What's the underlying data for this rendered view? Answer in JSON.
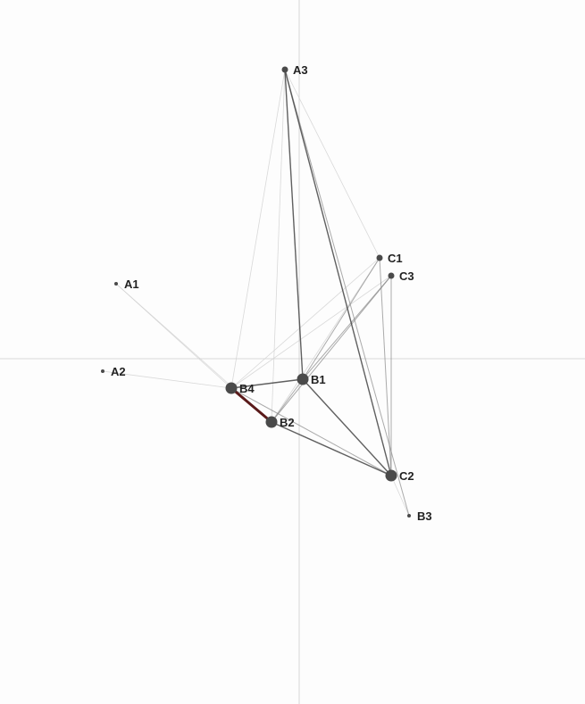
{
  "colors": {
    "background": "#fdfdfd",
    "axis": "#cccccc",
    "node": "#4a4a4a",
    "edge_strong": "#444444",
    "edge_medium": "#888888",
    "edge_weak": "#cfcfcf",
    "edge_highlight": "#5a1a1a"
  },
  "nodes": [
    {
      "id": "A1",
      "label": "A1",
      "size": "tiny"
    },
    {
      "id": "A2",
      "label": "A2",
      "size": "tiny"
    },
    {
      "id": "A3",
      "label": "A3",
      "size": "small"
    },
    {
      "id": "B1",
      "label": "B1",
      "size": "large"
    },
    {
      "id": "B2",
      "label": "B2",
      "size": "large"
    },
    {
      "id": "B3",
      "label": "B3",
      "size": "tiny"
    },
    {
      "id": "B4",
      "label": "B4",
      "size": "large"
    },
    {
      "id": "C1",
      "label": "C1",
      "size": "small"
    },
    {
      "id": "C2",
      "label": "C2",
      "size": "large"
    },
    {
      "id": "C3",
      "label": "C3",
      "size": "small"
    }
  ],
  "edges": [
    {
      "from": "A3",
      "to": "B1",
      "strength": "strong"
    },
    {
      "from": "A3",
      "to": "C2",
      "strength": "strong"
    },
    {
      "from": "A3",
      "to": "B4",
      "strength": "weak"
    },
    {
      "from": "A3",
      "to": "B2",
      "strength": "weak"
    },
    {
      "from": "A3",
      "to": "C1",
      "strength": "weak"
    },
    {
      "from": "A3",
      "to": "B3",
      "strength": "medium"
    },
    {
      "from": "B1",
      "to": "B4",
      "strength": "strong"
    },
    {
      "from": "B1",
      "to": "C2",
      "strength": "strong"
    },
    {
      "from": "B1",
      "to": "C3",
      "strength": "medium"
    },
    {
      "from": "B1",
      "to": "C1",
      "strength": "medium"
    },
    {
      "from": "B1",
      "to": "B2",
      "strength": "medium"
    },
    {
      "from": "B4",
      "to": "B2",
      "strength": "highlight"
    },
    {
      "from": "B4",
      "to": "C2",
      "strength": "medium"
    },
    {
      "from": "B4",
      "to": "C1",
      "strength": "weak"
    },
    {
      "from": "B4",
      "to": "C3",
      "strength": "weak"
    },
    {
      "from": "B2",
      "to": "C2",
      "strength": "strong"
    },
    {
      "from": "B2",
      "to": "C3",
      "strength": "medium"
    },
    {
      "from": "B2",
      "to": "C1",
      "strength": "weak"
    },
    {
      "from": "C3",
      "to": "C2",
      "strength": "medium"
    },
    {
      "from": "C1",
      "to": "C2",
      "strength": "medium"
    },
    {
      "from": "C2",
      "to": "B3",
      "strength": "weak"
    },
    {
      "from": "A1",
      "to": "B4",
      "strength": "weak"
    },
    {
      "from": "A1",
      "to": "B2",
      "strength": "weak"
    },
    {
      "from": "A2",
      "to": "B4",
      "strength": "weak"
    }
  ]
}
